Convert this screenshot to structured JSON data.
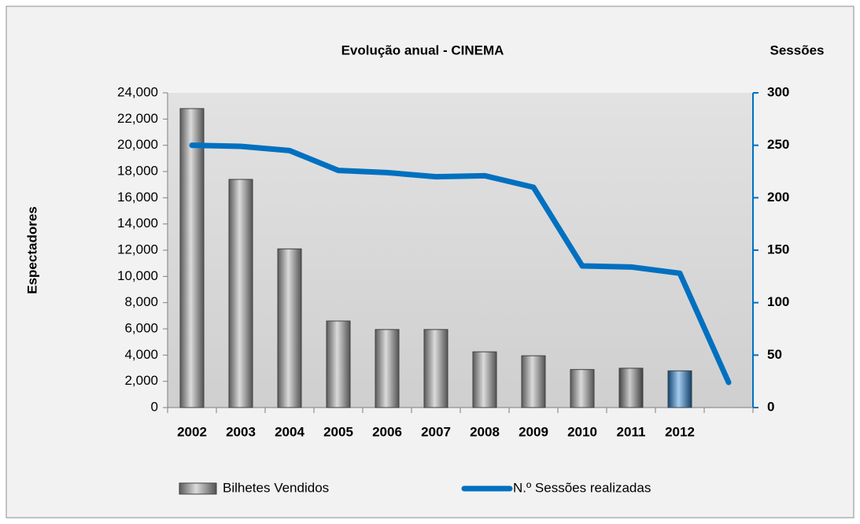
{
  "chart_data": {
    "type": "bar",
    "title": "Evolução anual - CINEMA",
    "y_label": "Espectadores",
    "y2_label": "Sessões",
    "categories": [
      "2002",
      "2003",
      "2004",
      "2005",
      "2006",
      "2007",
      "2008",
      "2009",
      "2010",
      "2011",
      "2012",
      null
    ],
    "series": [
      {
        "name": "Bilhetes Vendidos",
        "type": "bar",
        "color": "#a6a6a6",
        "colors": [
          "#a6a6a6",
          "#a6a6a6",
          "#a6a6a6",
          "#a6a6a6",
          "#a6a6a6",
          "#a6a6a6",
          "#a6a6a6",
          "#a6a6a6",
          "#a6a6a6",
          "#7f7f7f",
          "#1f7fd4",
          null
        ],
        "values": [
          22800,
          17400,
          12100,
          6600,
          5950,
          5950,
          4250,
          3950,
          2900,
          3000,
          2800,
          null
        ]
      },
      {
        "name": "N.º Sessões realizadas",
        "type": "line",
        "axis": "y2",
        "color": "#0070c0",
        "values": [
          250,
          249,
          245,
          226,
          224,
          220,
          221,
          210,
          135,
          134,
          128,
          24
        ]
      }
    ],
    "ylim": [
      0,
      24000
    ],
    "yticks": [
      0,
      {
        "value": 2000,
        "label": "2,000"
      },
      {
        "value": 4000,
        "label": "4,000"
      },
      {
        "value": 6000,
        "label": "6,000"
      },
      {
        "value": 8000,
        "label": "8,000"
      },
      {
        "value": 10000,
        "label": "10,000"
      },
      {
        "value": 12000,
        "label": "12,000"
      },
      {
        "value": 14000,
        "label": "14,000"
      },
      {
        "value": 16000,
        "label": "16,000"
      },
      {
        "value": 18000,
        "label": "18,000"
      },
      {
        "value": 20000,
        "label": "20,000"
      },
      {
        "value": 22000,
        "label": "22,000"
      },
      {
        "value": 24000,
        "label": "24,000"
      }
    ],
    "y2lim": [
      0,
      300
    ],
    "y2ticks": [
      0,
      50,
      100,
      150,
      200,
      250,
      300
    ],
    "y2color": "#0070c0",
    "legend": "bottom"
  }
}
